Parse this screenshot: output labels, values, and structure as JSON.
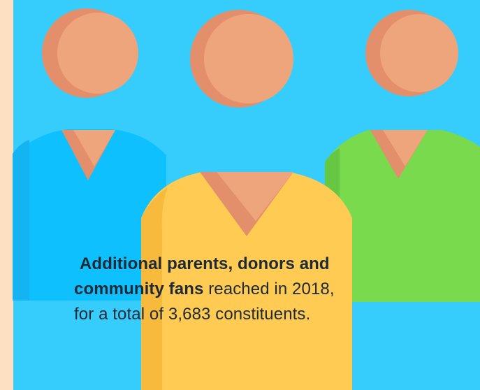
{
  "caption": {
    "line1_bold": "Additional parents, donors and",
    "line2_bold": "community fans",
    "line2_regular": " reached in 2018,",
    "line3_regular": "for a total of 3,683 constituents."
  },
  "colors": {
    "background": "#36cdfc",
    "left_strip": "#fde0c2",
    "skin": "#efa57b",
    "skin_shadow": "#e48f6c",
    "shirt_left": "#0fc0ff",
    "shirt_left_shade": "#14b3f2",
    "shirt_center": "#ffcb52",
    "shirt_center_shade": "#f7ba3c",
    "shirt_right": "#78da4c",
    "shirt_right_shade": "#66c842",
    "text": "#1e2a35"
  },
  "icons": [
    "person-left-icon",
    "person-center-icon",
    "person-right-icon"
  ]
}
